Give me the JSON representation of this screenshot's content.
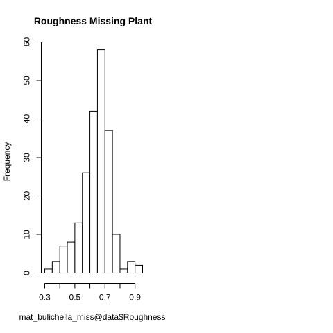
{
  "chart_data": {
    "type": "bar",
    "title": "Roughness Missing Plant",
    "xlabel": "mat_bulichella_miss@data$Roughness",
    "ylabel": "Frequency",
    "bin_edges": [
      0.3,
      0.35,
      0.4,
      0.45,
      0.5,
      0.55,
      0.6,
      0.65,
      0.7,
      0.75,
      0.8,
      0.85,
      0.9,
      0.95
    ],
    "values": [
      1,
      3,
      7,
      8,
      13,
      26,
      42,
      58,
      37,
      10,
      1,
      3,
      2
    ],
    "xlim": [
      0.3,
      0.95
    ],
    "ylim": [
      0,
      60
    ],
    "x_ticks": [
      0.3,
      0.4,
      0.5,
      0.6,
      0.7,
      0.8,
      0.9
    ],
    "x_tick_labels": [
      "0.3",
      "",
      "0.5",
      "",
      "0.7",
      "",
      "0.9"
    ],
    "y_ticks": [
      0,
      10,
      20,
      30,
      40,
      50,
      60
    ],
    "y_tick_labels": [
      "0",
      "10",
      "20",
      "30",
      "40",
      "50",
      "60"
    ],
    "grid": false,
    "legend": false
  }
}
